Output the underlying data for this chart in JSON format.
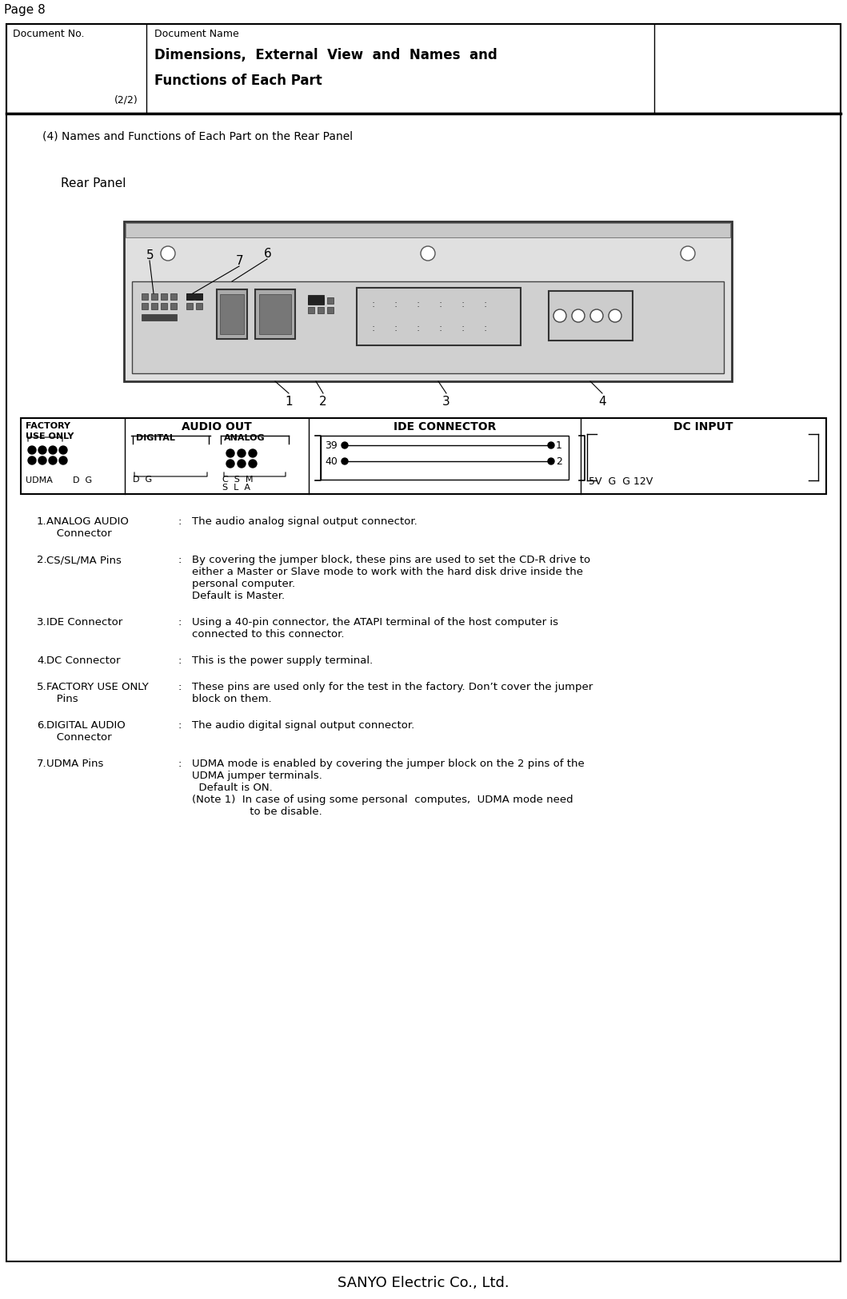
{
  "page_label": "Page 8",
  "header_doc_no": "Document No.",
  "header_doc_name": "Document Name",
  "header_title_line1": "Dimensions,  External  View  and  Names  and",
  "header_title_line2": "Functions of Each Part",
  "header_subtitle": "(2/2)",
  "section_title": "(4) Names and Functions of Each Part on the Rear Panel",
  "rear_panel_label": "Rear Panel",
  "footer_text": "SANYO Electric Co., Ltd.",
  "bg_color": "#ffffff",
  "descriptions": [
    {
      "num": "1.",
      "term": "ANALOG AUDIO\n   Connector",
      "desc": "The audio analog signal output connector.",
      "term_lines": 2,
      "desc_lines": 1
    },
    {
      "num": "2.",
      "term": "CS/SL/MA Pins",
      "desc": "By covering the jumper block, these pins are used to set the CD-R drive to\neither a Master or Slave mode to work with the hard disk drive inside the\npersonal computer.\nDefault is Master.",
      "term_lines": 1,
      "desc_lines": 4
    },
    {
      "num": "3.",
      "term": "IDE Connector",
      "desc": "Using a 40-pin connector, the ATAPI terminal of the host computer is\nconnected to this connector.",
      "term_lines": 1,
      "desc_lines": 2
    },
    {
      "num": "4.",
      "term": "DC Connector",
      "desc": "This is the power supply terminal.",
      "term_lines": 1,
      "desc_lines": 1
    },
    {
      "num": "5.",
      "term": "FACTORY USE ONLY\n   Pins",
      "desc": "These pins are used only for the test in the factory. Don’t cover the jumper\nblock on them.",
      "term_lines": 2,
      "desc_lines": 2
    },
    {
      "num": "6.",
      "term": "DIGITAL AUDIO\n   Connector",
      "desc": "The audio digital signal output connector.",
      "term_lines": 2,
      "desc_lines": 1
    },
    {
      "num": "7.",
      "term": "UDMA Pins",
      "desc": "UDMA mode is enabled by covering the jumper block on the 2 pins of the\nUDMA jumper terminals.\n  Default is ON.\n(Note 1)  In case of using some personal  computes,  UDMA mode need\n                 to be disable.",
      "term_lines": 1,
      "desc_lines": 5
    }
  ]
}
